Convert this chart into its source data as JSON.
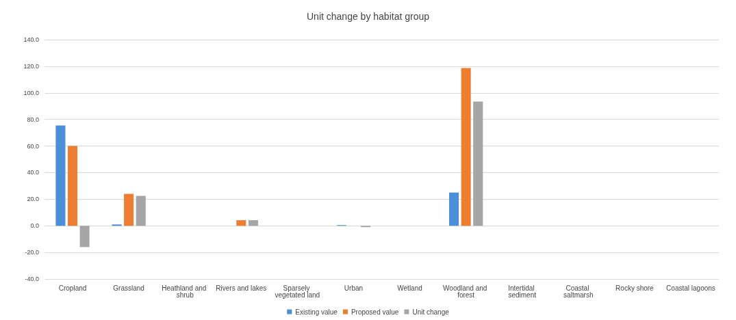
{
  "chart_data": {
    "type": "bar",
    "title": "Unit change by habitat group",
    "categories": [
      "Cropland",
      "Grassland",
      "Heathland and shrub",
      "Rivers and lakes",
      "Sparsely vegetated land",
      "Urban",
      "Wetland",
      "Woodland and forest",
      "Intertidal sediment",
      "Coastal saltmarsh",
      "Rocky shore",
      "Coastal lagoons"
    ],
    "series": [
      {
        "name": "Existing value",
        "color": "#4a8fd8",
        "values": [
          75.5,
          1.0,
          0,
          0,
          0,
          0.5,
          0,
          25.0,
          0,
          0,
          0,
          0
        ]
      },
      {
        "name": "Proposed value",
        "color": "#ed7d31",
        "values": [
          60.0,
          24.0,
          0,
          4.2,
          0,
          0,
          0,
          118.6,
          0,
          0,
          0,
          0
        ]
      },
      {
        "name": "Unit change",
        "color": "#a5a5a5",
        "values": [
          -16.0,
          22.5,
          0,
          4.2,
          0,
          -1.0,
          0,
          93.5,
          0,
          0,
          0,
          0
        ]
      }
    ],
    "ylim": [
      -40,
      140
    ],
    "yticks": [
      {
        "value": -40,
        "label": "-40.0"
      },
      {
        "value": -20,
        "label": "-20.0"
      },
      {
        "value": 0,
        "label": "0.0"
      },
      {
        "value": 20,
        "label": "20.0"
      },
      {
        "value": 40,
        "label": "40.0"
      },
      {
        "value": 60,
        "label": "60.0"
      },
      {
        "value": 80,
        "label": "80.0"
      },
      {
        "value": 100,
        "label": "100.0"
      },
      {
        "value": 120,
        "label": "120.0"
      },
      {
        "value": 140,
        "label": "140.0"
      }
    ],
    "grid": "y",
    "legend": "bottom"
  }
}
